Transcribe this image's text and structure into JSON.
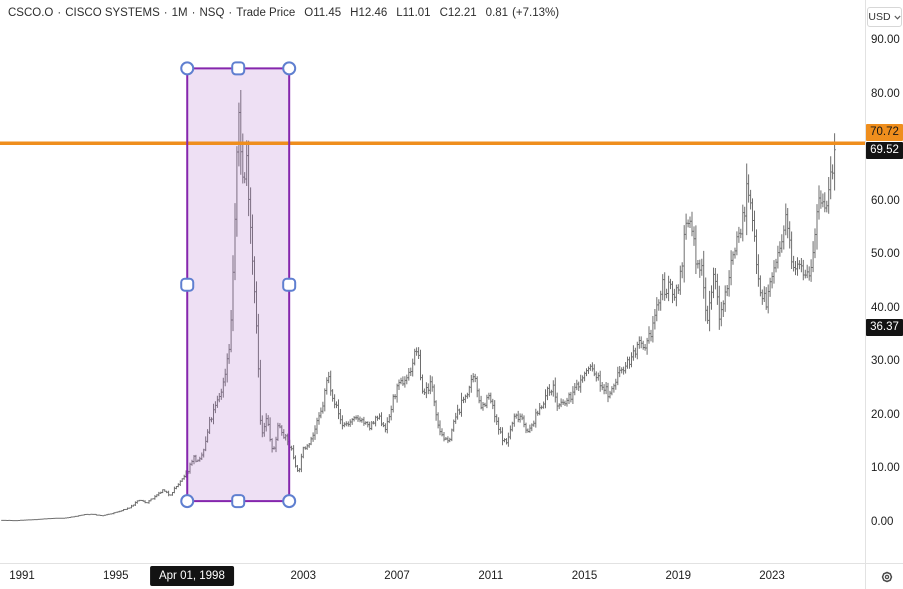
{
  "header": {
    "symbol": "CSCO.O",
    "name": "CISCO SYSTEMS",
    "interval": "1M",
    "exchange": "NSQ",
    "field": "Trade Price",
    "separator": "·",
    "ohlc": {
      "o_label": "O",
      "o_value": "11.45",
      "h_label": "H",
      "h_value": "12.46",
      "l_label": "L",
      "l_value": "11.01",
      "c_label": "C",
      "c_value": "12.21",
      "change": "0.81",
      "change_pct": "(+7.13%)"
    }
  },
  "y_axis": {
    "currency": "USD",
    "ticks": [
      {
        "label": "90.00",
        "value": 90
      },
      {
        "label": "80.00",
        "value": 80
      },
      {
        "label": "60.00",
        "value": 60
      },
      {
        "label": "50.00",
        "value": 50
      },
      {
        "label": "40.00",
        "value": 40
      },
      {
        "label": "30.00",
        "value": 30
      },
      {
        "label": "20.00",
        "value": 20
      },
      {
        "label": "10.00",
        "value": 10
      },
      {
        "label": "0.00",
        "value": 0
      }
    ],
    "badges": {
      "line_price": {
        "label": "70.72",
        "price": 70.72,
        "bg": "#ef8e1d",
        "fg": "#151515"
      },
      "last_price": {
        "label": "69.52",
        "price": 69.52,
        "bg": "#131313",
        "fg": "#ffffff"
      },
      "crosshair_price": {
        "label": "36.37",
        "price": 36.37,
        "bg": "#131313",
        "fg": "#ffffff"
      }
    }
  },
  "x_axis": {
    "ticks": [
      {
        "label": "1991",
        "year": 1991
      },
      {
        "label": "1995",
        "year": 1995
      },
      {
        "label": "2003",
        "year": 2003
      },
      {
        "label": "2007",
        "year": 2007
      },
      {
        "label": "2011",
        "year": 2011
      },
      {
        "label": "2015",
        "year": 2015
      },
      {
        "label": "2019",
        "year": 2019
      },
      {
        "label": "2023",
        "year": 2023
      }
    ],
    "crosshair_date": {
      "label": "Apr 01, 1998",
      "year": 1998.25
    }
  },
  "annotations": {
    "horizontal_line": {
      "price": 70.72,
      "color": "#ef8e1d"
    },
    "rectangle": {
      "time_start": 1998.05,
      "time_end": 2002.4,
      "price_top": 84.7,
      "price_bottom": 3.9,
      "stroke": "#8526ad",
      "fill": "rgba(176,112,204,0.22)",
      "handle_fill": "#ffffff",
      "handle_stroke": "#5f7fd0"
    }
  },
  "chart_data": {
    "type": "bar",
    "subtype": "monthly-ohlc",
    "title": "CSCO.O Cisco Systems monthly trade price",
    "ylabel": "USD",
    "ylim": [
      0,
      90
    ],
    "x_range_years": [
      1990.17,
      2025.67
    ],
    "bar_color": "#6e6e6e",
    "monthly_close_anchors": [
      [
        1990.17,
        0.3
      ],
      [
        1990.5,
        0.28
      ],
      [
        1990.75,
        0.26
      ],
      [
        1991.0,
        0.33
      ],
      [
        1991.3,
        0.4
      ],
      [
        1991.6,
        0.45
      ],
      [
        1992.0,
        0.6
      ],
      [
        1992.4,
        0.68
      ],
      [
        1992.8,
        0.72
      ],
      [
        1993.2,
        1.0
      ],
      [
        1993.7,
        1.4
      ],
      [
        1994.0,
        1.45
      ],
      [
        1994.4,
        1.15
      ],
      [
        1994.8,
        1.55
      ],
      [
        1995.2,
        2.05
      ],
      [
        1995.6,
        2.7
      ],
      [
        1996.0,
        4.1
      ],
      [
        1996.3,
        3.6
      ],
      [
        1996.7,
        4.7
      ],
      [
        1997.0,
        5.9
      ],
      [
        1997.3,
        5.0
      ],
      [
        1997.6,
        6.7
      ],
      [
        1997.9,
        8.2
      ],
      [
        1998.1,
        9.8
      ],
      [
        1998.3,
        12.21
      ],
      [
        1998.55,
        11.0
      ],
      [
        1998.8,
        14.0
      ],
      [
        1999.0,
        18.5
      ],
      [
        1999.3,
        22.0
      ],
      [
        1999.6,
        26.0
      ],
      [
        1999.9,
        35.0
      ],
      [
        2000.1,
        58.0
      ],
      [
        2000.25,
        77.0
      ],
      [
        2000.45,
        62.0
      ],
      [
        2000.6,
        68.0
      ],
      [
        2000.8,
        52.0
      ],
      [
        2001.0,
        38.0
      ],
      [
        2001.2,
        15.5
      ],
      [
        2001.45,
        19.5
      ],
      [
        2001.7,
        12.5
      ],
      [
        2001.95,
        18.5
      ],
      [
        2002.2,
        16.0
      ],
      [
        2002.5,
        13.5
      ],
      [
        2002.78,
        9.0
      ],
      [
        2003.0,
        13.5
      ],
      [
        2003.4,
        16.0
      ],
      [
        2003.8,
        21.0
      ],
      [
        2004.05,
        27.5
      ],
      [
        2004.3,
        23.0
      ],
      [
        2004.65,
        18.2
      ],
      [
        2005.0,
        18.5
      ],
      [
        2005.4,
        19.5
      ],
      [
        2005.8,
        17.5
      ],
      [
        2006.2,
        19.5
      ],
      [
        2006.55,
        17.5
      ],
      [
        2006.9,
        24.0
      ],
      [
        2007.2,
        26.0
      ],
      [
        2007.5,
        27.5
      ],
      [
        2007.85,
        32.5
      ],
      [
        2008.1,
        24.0
      ],
      [
        2008.45,
        26.0
      ],
      [
        2008.8,
        17.5
      ],
      [
        2009.15,
        14.5
      ],
      [
        2009.5,
        19.5
      ],
      [
        2009.9,
        23.5
      ],
      [
        2010.3,
        26.8
      ],
      [
        2010.6,
        21.5
      ],
      [
        2010.95,
        23.5
      ],
      [
        2011.3,
        17.5
      ],
      [
        2011.65,
        14.5
      ],
      [
        2012.0,
        19.5
      ],
      [
        2012.3,
        20.0
      ],
      [
        2012.6,
        16.5
      ],
      [
        2013.0,
        20.5
      ],
      [
        2013.4,
        24.0
      ],
      [
        2013.65,
        25.5
      ],
      [
        2013.85,
        21.5
      ],
      [
        2014.2,
        22.2
      ],
      [
        2014.6,
        24.8
      ],
      [
        2015.0,
        27.5
      ],
      [
        2015.25,
        29.0
      ],
      [
        2015.7,
        25.8
      ],
      [
        2016.1,
        23.5
      ],
      [
        2016.5,
        28.5
      ],
      [
        2016.9,
        30.0
      ],
      [
        2017.3,
        33.0
      ],
      [
        2017.6,
        31.5
      ],
      [
        2018.0,
        38.5
      ],
      [
        2018.35,
        44.0
      ],
      [
        2018.7,
        43.0
      ],
      [
        2019.0,
        43.5
      ],
      [
        2019.3,
        54.0
      ],
      [
        2019.55,
        56.5
      ],
      [
        2019.8,
        47.0
      ],
      [
        2020.05,
        47.5
      ],
      [
        2020.22,
        37.0
      ],
      [
        2020.5,
        46.5
      ],
      [
        2020.8,
        37.5
      ],
      [
        2021.1,
        45.0
      ],
      [
        2021.45,
        52.5
      ],
      [
        2021.7,
        55.0
      ],
      [
        2021.95,
        62.5
      ],
      [
        2022.2,
        55.0
      ],
      [
        2022.5,
        43.5
      ],
      [
        2022.78,
        41.0
      ],
      [
        2023.1,
        48.0
      ],
      [
        2023.35,
        50.5
      ],
      [
        2023.6,
        56.0
      ],
      [
        2023.9,
        48.5
      ],
      [
        2024.15,
        49.5
      ],
      [
        2024.45,
        46.5
      ],
      [
        2024.65,
        47.5
      ],
      [
        2024.9,
        56.5
      ],
      [
        2025.1,
        61.0
      ],
      [
        2025.3,
        57.5
      ],
      [
        2025.5,
        64.5
      ],
      [
        2025.67,
        69.52
      ]
    ],
    "last_bar": {
      "close": 69.52,
      "high": 72.6
    }
  },
  "icons": {
    "currency_chevron": "chevron-down",
    "settings": "gear"
  }
}
